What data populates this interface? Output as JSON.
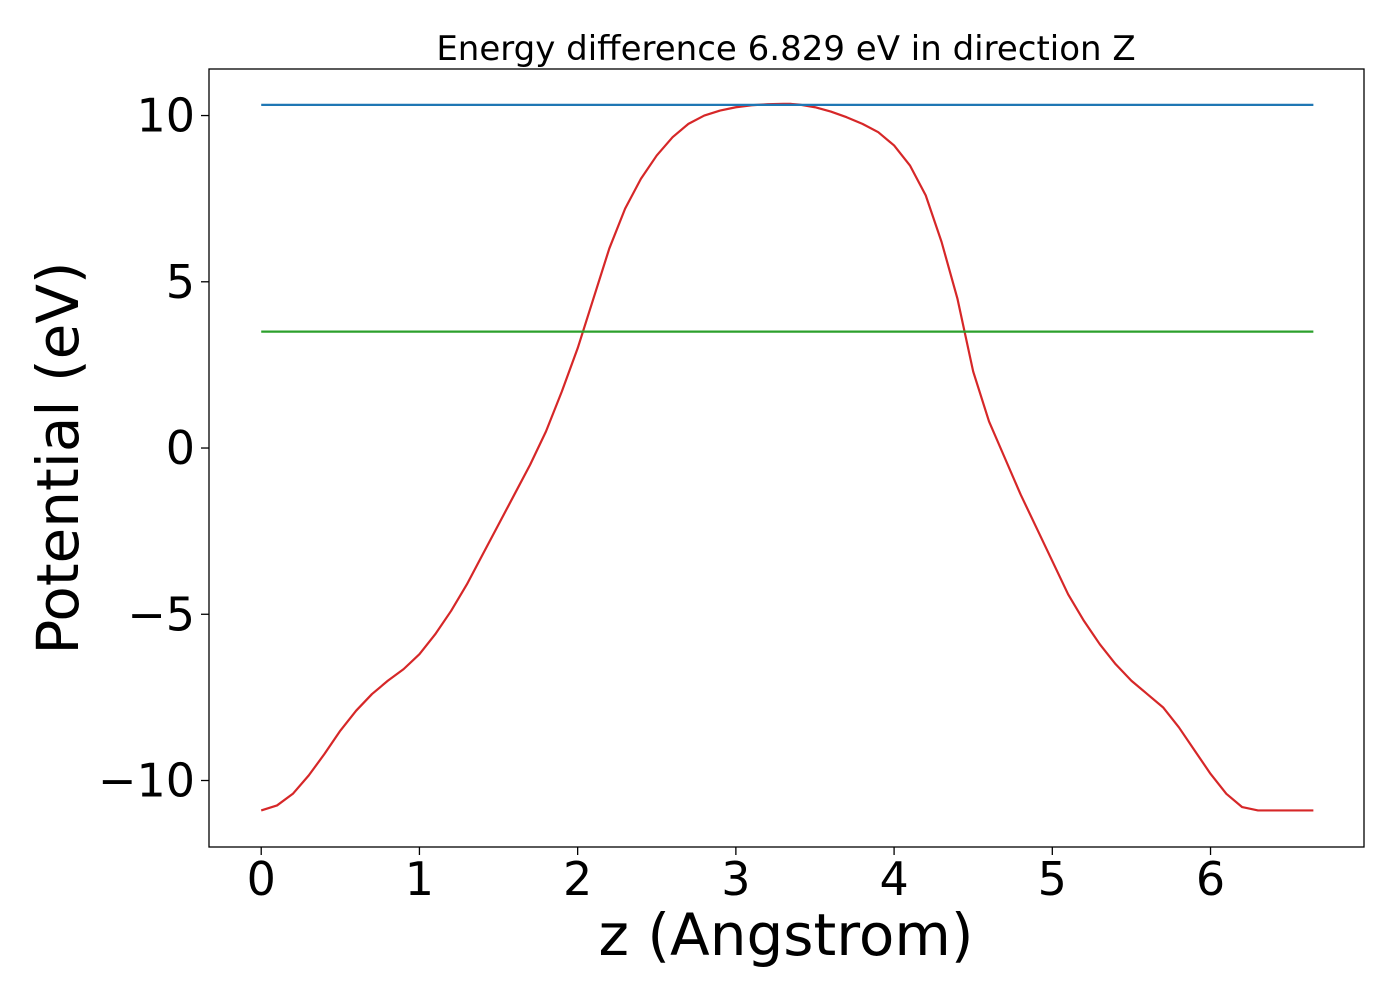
{
  "chart_data": {
    "type": "line",
    "title": "Energy difference 6.829 eV in direction Z",
    "xlabel": "z (Angstrom)",
    "ylabel": "Potential (eV)",
    "xlim": [
      -0.33,
      6.97
    ],
    "ylim": [
      -12.0,
      11.4
    ],
    "xticks": [
      0,
      1,
      2,
      3,
      4,
      5,
      6
    ],
    "xtick_labels": [
      "0",
      "1",
      "2",
      "3",
      "4",
      "5",
      "6"
    ],
    "yticks": [
      -10,
      -5,
      0,
      5,
      10
    ],
    "ytick_labels": [
      "−10",
      "−5",
      "0",
      "5",
      "10"
    ],
    "grid": false,
    "legend": "none",
    "series": [
      {
        "color": "#d62728",
        "x": [
          0.0,
          0.1,
          0.2,
          0.3,
          0.4,
          0.5,
          0.6,
          0.7,
          0.8,
          0.9,
          1.0,
          1.1,
          1.2,
          1.3,
          1.4,
          1.5,
          1.6,
          1.7,
          1.8,
          1.9,
          2.0,
          2.1,
          2.2,
          2.3,
          2.4,
          2.5,
          2.6,
          2.7,
          2.8,
          2.9,
          3.0,
          3.1,
          3.2,
          3.3,
          3.35,
          3.4,
          3.5,
          3.6,
          3.7,
          3.8,
          3.9,
          4.0,
          4.1,
          4.2,
          4.3,
          4.4,
          4.5,
          4.6,
          4.7,
          4.8,
          4.9,
          5.0,
          5.1,
          5.2,
          5.3,
          5.4,
          5.5,
          5.6,
          5.7,
          5.8,
          5.9,
          6.0,
          6.1,
          6.2,
          6.3,
          6.4,
          6.5,
          6.6,
          6.65
        ],
        "values": [
          -10.9,
          -10.75,
          -10.4,
          -9.85,
          -9.2,
          -8.5,
          -7.9,
          -7.4,
          -7.0,
          -6.65,
          -6.2,
          -5.6,
          -4.9,
          -4.1,
          -3.2,
          -2.3,
          -1.4,
          -0.5,
          0.5,
          1.7,
          3.0,
          4.5,
          6.0,
          7.2,
          8.1,
          8.8,
          9.35,
          9.75,
          10.0,
          10.15,
          10.25,
          10.31,
          10.34,
          10.35,
          10.35,
          10.33,
          10.25,
          10.12,
          9.95,
          9.75,
          9.5,
          9.1,
          8.5,
          7.6,
          6.2,
          4.5,
          2.3,
          0.8,
          -0.3,
          -1.4,
          -2.4,
          -3.4,
          -4.4,
          -5.2,
          -5.9,
          -6.5,
          -7.0,
          -7.4,
          -7.8,
          -8.4,
          -9.1,
          -9.8,
          -10.4,
          -10.8,
          -10.9,
          -10.9,
          -10.9,
          -10.9,
          -10.9
        ]
      },
      {
        "color": "#1f77b4",
        "x": [
          0.0,
          6.65
        ],
        "values": [
          10.32,
          10.32
        ]
      },
      {
        "color": "#2ca02c",
        "x": [
          0.0,
          6.65
        ],
        "values": [
          3.5,
          3.5
        ]
      }
    ]
  }
}
